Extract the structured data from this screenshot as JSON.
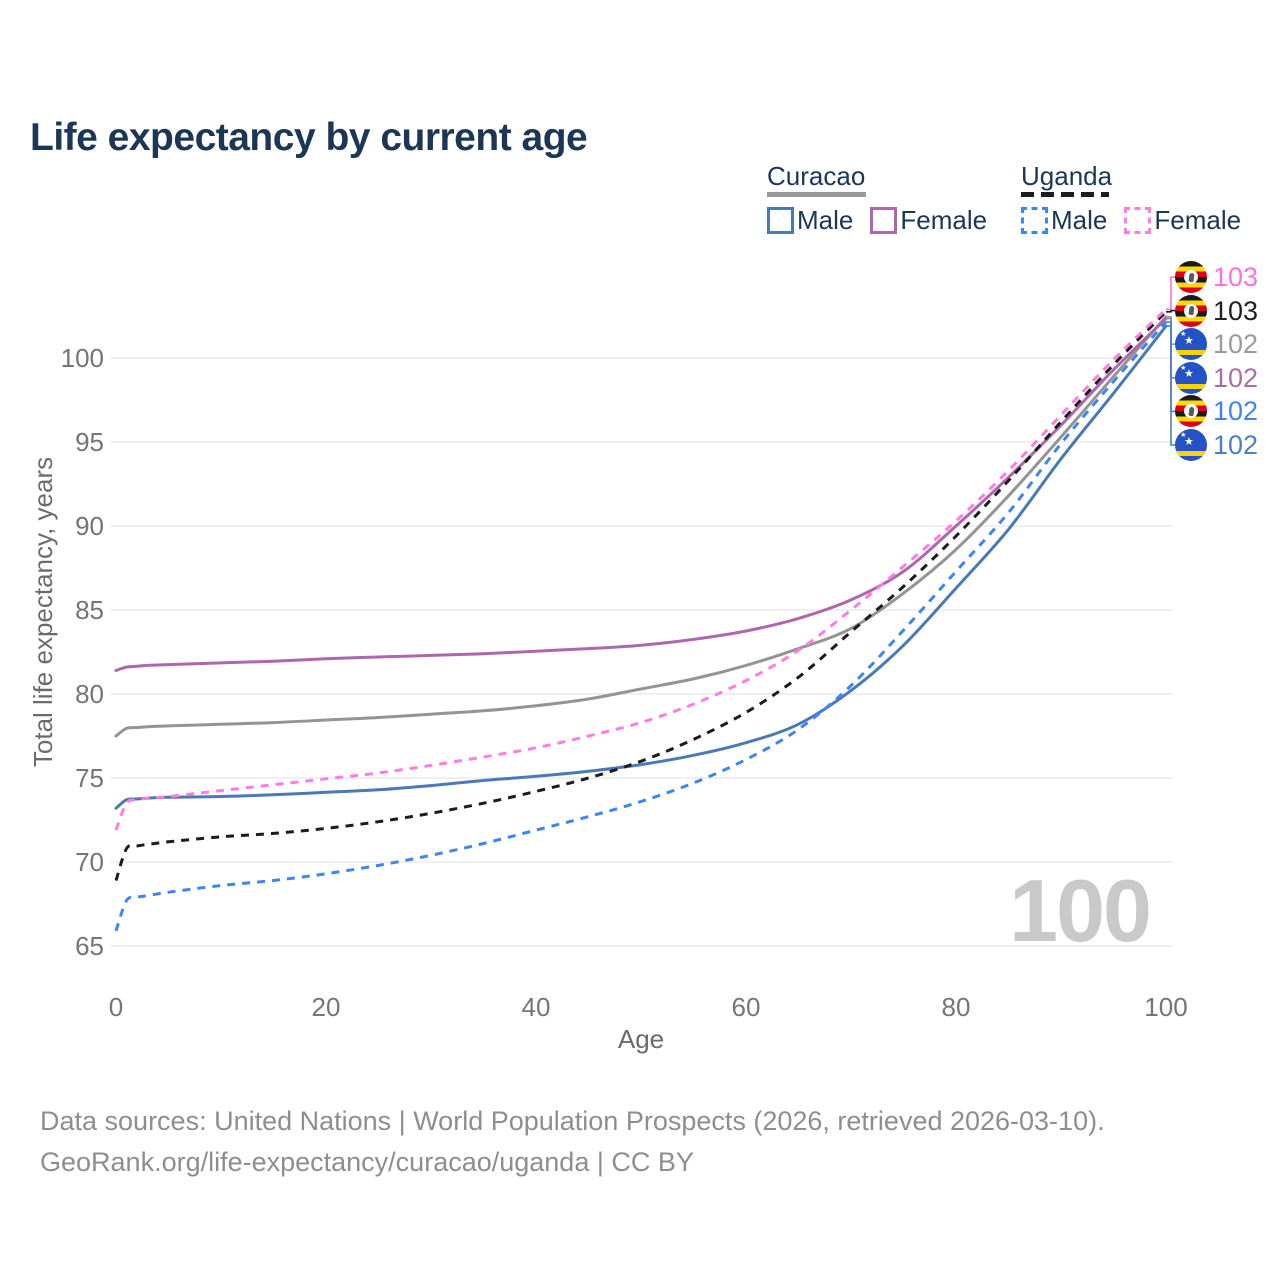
{
  "page": {
    "title": "Life expectancy by current age"
  },
  "legend": {
    "groups": [
      {
        "country": "Curacao",
        "line_style": "solid",
        "line_color": "#9a9a9a",
        "items": [
          {
            "label": "Male",
            "swatch_color": "#4a7ab5",
            "swatch_style": "solid"
          },
          {
            "label": "Female",
            "swatch_color": "#ad68ad",
            "swatch_style": "solid"
          }
        ]
      },
      {
        "country": "Uganda",
        "line_style": "dashed",
        "line_color": "#1c1c1c",
        "items": [
          {
            "label": "Male",
            "swatch_color": "#3d85f0",
            "swatch_style": "dashed"
          },
          {
            "label": "Female",
            "swatch_color": "#ff7ce0",
            "swatch_style": "dashed"
          }
        ]
      }
    ]
  },
  "chart_data": {
    "type": "line",
    "title": "Life expectancy by current age",
    "xlabel": "Age",
    "ylabel": "Total life expectancy, years",
    "x_ticks": [
      0,
      20,
      40,
      60,
      80,
      100
    ],
    "y_ticks": [
      65,
      70,
      75,
      80,
      85,
      90,
      95,
      100
    ],
    "xlim": [
      0,
      100
    ],
    "ylim": [
      65,
      103
    ],
    "grid": "horizontal-only",
    "legend_position": "top-right",
    "ages": [
      0,
      1,
      2,
      3,
      5,
      10,
      15,
      20,
      25,
      30,
      35,
      40,
      45,
      50,
      55,
      60,
      65,
      70,
      75,
      80,
      85,
      90,
      95,
      100
    ],
    "series": [
      {
        "name": "Curacao Both sexes",
        "color": "#949494",
        "dash": false,
        "values": [
          77.5,
          77.95,
          78.0,
          78.05,
          78.1,
          78.2,
          78.3,
          78.45,
          78.6,
          78.8,
          79.0,
          79.3,
          79.7,
          80.3,
          80.9,
          81.7,
          82.7,
          83.9,
          86.0,
          88.6,
          91.8,
          95.3,
          98.9,
          102.45
        ]
      },
      {
        "name": "Curacao Female",
        "color": "#ad68ad",
        "dash": false,
        "values": [
          81.4,
          81.6,
          81.65,
          81.7,
          81.75,
          81.85,
          81.95,
          82.1,
          82.2,
          82.3,
          82.4,
          82.55,
          82.7,
          82.9,
          83.25,
          83.75,
          84.5,
          85.6,
          87.3,
          90.0,
          92.9,
          96.0,
          99.3,
          102.35
        ]
      },
      {
        "name": "Curacao Male",
        "color": "#4a7ab5",
        "dash": false,
        "values": [
          73.2,
          73.7,
          73.75,
          73.8,
          73.85,
          73.9,
          74.0,
          74.15,
          74.3,
          74.55,
          74.85,
          75.1,
          75.4,
          75.8,
          76.35,
          77.1,
          78.2,
          80.2,
          82.9,
          86.3,
          89.8,
          94.0,
          97.9,
          101.9
        ]
      },
      {
        "name": "Uganda Both sexes",
        "color": "#1c1c1c",
        "dash": true,
        "values": [
          68.9,
          70.8,
          70.95,
          71.05,
          71.2,
          71.5,
          71.7,
          72.0,
          72.4,
          72.9,
          73.5,
          74.2,
          75.0,
          76.0,
          77.3,
          78.9,
          81.0,
          83.7,
          86.4,
          89.4,
          92.7,
          96.2,
          99.6,
          102.75
        ]
      },
      {
        "name": "Uganda Male",
        "color": "#3d85f0",
        "dash": true,
        "values": [
          65.9,
          67.7,
          67.9,
          68.0,
          68.2,
          68.6,
          68.9,
          69.3,
          69.8,
          70.4,
          71.1,
          71.9,
          72.7,
          73.6,
          74.7,
          76.1,
          77.9,
          80.5,
          83.8,
          87.3,
          90.8,
          94.9,
          98.6,
          102.15
        ]
      },
      {
        "name": "Uganda Female",
        "color": "#ff7ce0",
        "dash": true,
        "values": [
          71.9,
          73.5,
          73.7,
          73.8,
          73.9,
          74.25,
          74.6,
          74.95,
          75.3,
          75.75,
          76.25,
          76.8,
          77.5,
          78.3,
          79.4,
          80.8,
          82.6,
          85.0,
          87.6,
          90.3,
          93.3,
          96.6,
          99.9,
          102.9
        ]
      }
    ]
  },
  "endpoint_labels": [
    {
      "value": "103",
      "flag": "uganda",
      "series": "Uganda Female",
      "color": "#ff70dd"
    },
    {
      "value": "103",
      "flag": "uganda",
      "series": "Uganda Both sexes",
      "color": "#1f1f1f"
    },
    {
      "value": "102",
      "flag": "curacao",
      "series": "Curacao Both sexes",
      "color": "#9b9b9b"
    },
    {
      "value": "102",
      "flag": "curacao",
      "series": "Curacao Female",
      "color": "#a76fa7"
    },
    {
      "value": "102",
      "flag": "uganda",
      "series": "Uganda Male",
      "color": "#3d85f0"
    },
    {
      "value": "102",
      "flag": "curacao",
      "series": "Curacao Male",
      "color": "#4d7fc9"
    }
  ],
  "watermark": "100",
  "footer": {
    "line1": "Data sources: United Nations | World Population Prospects (2026, retrieved 2026-03-10).",
    "line2": "GeoRank.org/life-expectancy/curacao/uganda | CC BY"
  }
}
